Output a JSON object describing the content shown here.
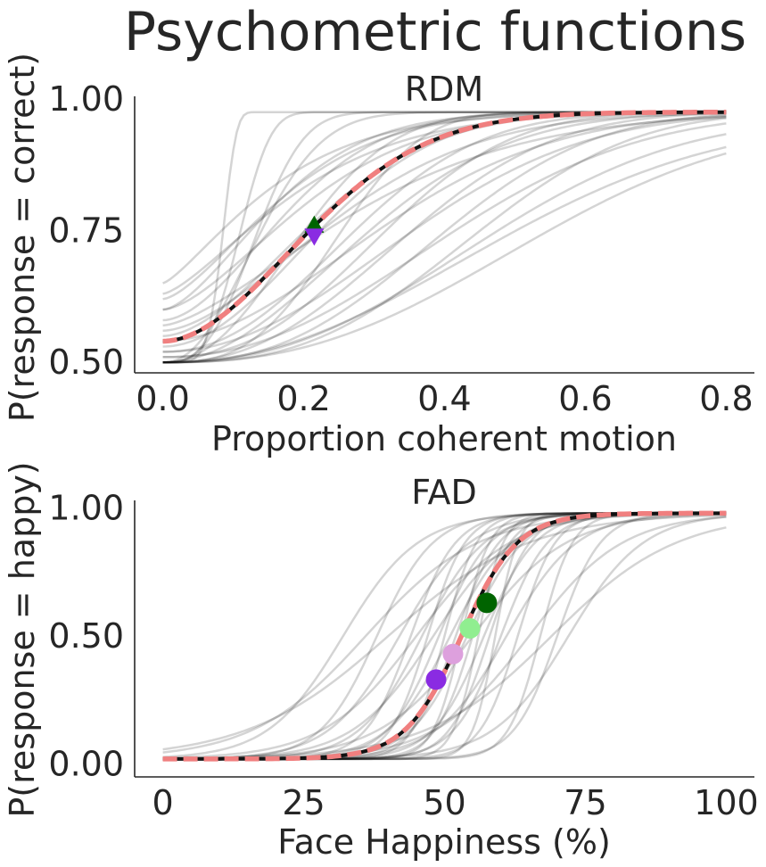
{
  "figure": {
    "suptitle": "Psychometric functions"
  },
  "chart_data": [
    {
      "type": "line",
      "title": "RDM",
      "xlabel": "Proportion coherent motion",
      "ylabel": "P(response = correct)",
      "xlim": [
        -0.04,
        0.84
      ],
      "ylim": [
        0.48,
        1.005
      ],
      "xticks": [
        0.0,
        0.2,
        0.4,
        0.6,
        0.8
      ],
      "xtick_labels": [
        "0.0",
        "0.2",
        "0.4",
        "0.6",
        "0.8"
      ],
      "yticks": [
        0.5,
        0.75,
        1.0
      ],
      "ytick_labels": [
        "0.50",
        "0.75",
        "1.00"
      ],
      "grid": false,
      "model": "weibull",
      "participant_color": "#000000",
      "group_color": "#f07f7f",
      "participants": [
        {
          "alpha": 0.09,
          "beta": 6.0,
          "guess": 0.5,
          "lapse": 0.025
        },
        {
          "alpha": 0.12,
          "beta": 3.5,
          "guess": 0.5,
          "lapse": 0.025
        },
        {
          "alpha": 0.16,
          "beta": 2.2,
          "guess": 0.5,
          "lapse": 0.025
        },
        {
          "alpha": 0.19,
          "beta": 1.6,
          "guess": 0.6,
          "lapse": 0.025
        },
        {
          "alpha": 0.2,
          "beta": 1.5,
          "guess": 0.62,
          "lapse": 0.025
        },
        {
          "alpha": 0.21,
          "beta": 1.8,
          "guess": 0.58,
          "lapse": 0.025
        },
        {
          "alpha": 0.22,
          "beta": 1.4,
          "guess": 0.63,
          "lapse": 0.025
        },
        {
          "alpha": 0.23,
          "beta": 2.2,
          "guess": 0.5,
          "lapse": 0.025
        },
        {
          "alpha": 0.24,
          "beta": 1.6,
          "guess": 0.6,
          "lapse": 0.025
        },
        {
          "alpha": 0.26,
          "beta": 1.8,
          "guess": 0.55,
          "lapse": 0.025
        },
        {
          "alpha": 0.27,
          "beta": 2.0,
          "guess": 0.53,
          "lapse": 0.025
        },
        {
          "alpha": 0.28,
          "beta": 3.0,
          "guess": 0.5,
          "lapse": 0.025
        },
        {
          "alpha": 0.3,
          "beta": 1.7,
          "guess": 0.56,
          "lapse": 0.025
        },
        {
          "alpha": 0.32,
          "beta": 2.2,
          "guess": 0.52,
          "lapse": 0.025
        },
        {
          "alpha": 0.34,
          "beta": 2.0,
          "guess": 0.5,
          "lapse": 0.025
        },
        {
          "alpha": 0.36,
          "beta": 2.5,
          "guess": 0.51,
          "lapse": 0.025
        },
        {
          "alpha": 0.38,
          "beta": 1.9,
          "guess": 0.54,
          "lapse": 0.025
        },
        {
          "alpha": 0.4,
          "beta": 2.4,
          "guess": 0.5,
          "lapse": 0.025
        },
        {
          "alpha": 0.42,
          "beta": 2.1,
          "guess": 0.52,
          "lapse": 0.025
        },
        {
          "alpha": 0.45,
          "beta": 2.6,
          "guess": 0.5,
          "lapse": 0.025
        },
        {
          "alpha": 0.48,
          "beta": 2.2,
          "guess": 0.51,
          "lapse": 0.025
        },
        {
          "alpha": 0.5,
          "beta": 2.8,
          "guess": 0.5,
          "lapse": 0.025
        },
        {
          "alpha": 0.53,
          "beta": 2.4,
          "guess": 0.5,
          "lapse": 0.035
        },
        {
          "alpha": 0.56,
          "beta": 2.2,
          "guess": 0.5,
          "lapse": 0.04
        },
        {
          "alpha": 0.6,
          "beta": 2.5,
          "guess": 0.5,
          "lapse": 0.045
        },
        {
          "alpha": 0.15,
          "beta": 2.8,
          "guess": 0.5,
          "lapse": 0.025
        },
        {
          "alpha": 0.18,
          "beta": 1.3,
          "guess": 0.65,
          "lapse": 0.025
        },
        {
          "alpha": 0.33,
          "beta": 1.5,
          "guess": 0.57,
          "lapse": 0.025
        }
      ],
      "group": {
        "alpha": 0.26,
        "beta": 1.9,
        "guess": 0.54,
        "lapse": 0.025
      },
      "markers": [
        {
          "shape": "triangle-up",
          "color": "#006400",
          "x": 0.215,
          "y": 0.76
        },
        {
          "shape": "triangle-down",
          "color": "#8a2be2",
          "x": 0.215,
          "y": 0.74
        }
      ]
    },
    {
      "type": "line",
      "title": "FAD",
      "xlabel": "Face Happiness (%)",
      "ylabel": "P(response = happy)",
      "xlim": [
        -5,
        105
      ],
      "ylim": [
        -0.05,
        1.03
      ],
      "xticks": [
        0,
        25,
        50,
        75,
        100
      ],
      "xtick_labels": [
        "0",
        "25",
        "50",
        "75",
        "100"
      ],
      "yticks": [
        0.0,
        0.5,
        1.0
      ],
      "ytick_labels": [
        "0.00",
        "0.50",
        "1.00"
      ],
      "grid": false,
      "model": "logistic",
      "participant_color": "#000000",
      "group_color": "#f07f7f",
      "participants": [
        {
          "mu": 32,
          "slope": 0.15,
          "guess": 0.02,
          "lapse": 0.02
        },
        {
          "mu": 36,
          "slope": 0.1,
          "guess": 0.02,
          "lapse": 0.02
        },
        {
          "mu": 38,
          "slope": 0.2,
          "guess": 0.02,
          "lapse": 0.02
        },
        {
          "mu": 40,
          "slope": 0.08,
          "guess": 0.02,
          "lapse": 0.02
        },
        {
          "mu": 42,
          "slope": 0.16,
          "guess": 0.02,
          "lapse": 0.02
        },
        {
          "mu": 44,
          "slope": 0.25,
          "guess": 0.02,
          "lapse": 0.02
        },
        {
          "mu": 45,
          "slope": 0.12,
          "guess": 0.02,
          "lapse": 0.02
        },
        {
          "mu": 46,
          "slope": 0.18,
          "guess": 0.02,
          "lapse": 0.02
        },
        {
          "mu": 47,
          "slope": 0.3,
          "guess": 0.02,
          "lapse": 0.02
        },
        {
          "mu": 48,
          "slope": 0.14,
          "guess": 0.02,
          "lapse": 0.02
        },
        {
          "mu": 49,
          "slope": 0.22,
          "guess": 0.02,
          "lapse": 0.02
        },
        {
          "mu": 50,
          "slope": 0.35,
          "guess": 0.02,
          "lapse": 0.02
        },
        {
          "mu": 51,
          "slope": 0.18,
          "guess": 0.02,
          "lapse": 0.02
        },
        {
          "mu": 52,
          "slope": 0.26,
          "guess": 0.02,
          "lapse": 0.02
        },
        {
          "mu": 53,
          "slope": 0.4,
          "guess": 0.02,
          "lapse": 0.02
        },
        {
          "mu": 54,
          "slope": 0.2,
          "guess": 0.02,
          "lapse": 0.02
        },
        {
          "mu": 55,
          "slope": 0.3,
          "guess": 0.02,
          "lapse": 0.02
        },
        {
          "mu": 56,
          "slope": 0.45,
          "guess": 0.02,
          "lapse": 0.02
        },
        {
          "mu": 57,
          "slope": 0.22,
          "guess": 0.02,
          "lapse": 0.02
        },
        {
          "mu": 58,
          "slope": 0.28,
          "guess": 0.02,
          "lapse": 0.02
        },
        {
          "mu": 59,
          "slope": 0.5,
          "guess": 0.02,
          "lapse": 0.02
        },
        {
          "mu": 60,
          "slope": 0.24,
          "guess": 0.02,
          "lapse": 0.02
        },
        {
          "mu": 61,
          "slope": 0.16,
          "guess": 0.02,
          "lapse": 0.02
        },
        {
          "mu": 63,
          "slope": 0.3,
          "guess": 0.02,
          "lapse": 0.02
        },
        {
          "mu": 65,
          "slope": 0.12,
          "guess": 0.02,
          "lapse": 0.02
        },
        {
          "mu": 67,
          "slope": 0.35,
          "guess": 0.02,
          "lapse": 0.02
        },
        {
          "mu": 69,
          "slope": 0.09,
          "guess": 0.02,
          "lapse": 0.02
        },
        {
          "mu": 70,
          "slope": 0.26,
          "guess": 0.02,
          "lapse": 0.02
        },
        {
          "mu": 72,
          "slope": 0.15,
          "guess": 0.02,
          "lapse": 0.02
        },
        {
          "mu": 55,
          "slope": 0.12,
          "guess": 0.02,
          "lapse": 0.02
        }
      ],
      "group": {
        "mu": 53,
        "slope": 0.2,
        "guess": 0.02,
        "lapse": 0.02
      },
      "markers": [
        {
          "shape": "circle",
          "color": "#8a2be2",
          "x": 48.5,
          "y": 0.33
        },
        {
          "shape": "circle",
          "color": "#dda0dd",
          "x": 51.5,
          "y": 0.43
        },
        {
          "shape": "circle",
          "color": "#90ee90",
          "x": 54.5,
          "y": 0.53
        },
        {
          "shape": "circle",
          "color": "#006400",
          "x": 57.5,
          "y": 0.63
        }
      ]
    }
  ]
}
